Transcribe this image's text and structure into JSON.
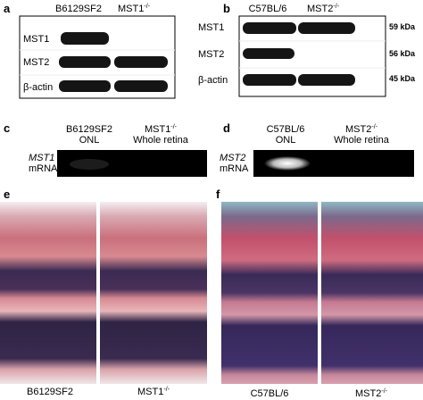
{
  "panels": {
    "a": {
      "label": "a",
      "lanes": [
        {
          "name": "B6129SF2"
        },
        {
          "name": "MST1",
          "sup": "-/-"
        }
      ],
      "rows": [
        "MST1",
        "MST2",
        "β-actin"
      ]
    },
    "b": {
      "label": "b",
      "lanes": [
        {
          "name": "C57BL/6"
        },
        {
          "name": "MST2",
          "sup": "-/-"
        }
      ],
      "rows": [
        "MST1",
        "MST2",
        "β-actin"
      ],
      "sizes": [
        "59 kDa",
        "56 kDa",
        "45 kDa"
      ]
    },
    "c": {
      "label": "c",
      "lanes": [
        {
          "name": "B6129SF2",
          "sub": "ONL"
        },
        {
          "name": "MST1",
          "sup": "-/-",
          "sub": "Whole retina"
        }
      ],
      "gene": "MST1",
      "molecule": "mRNA"
    },
    "d": {
      "label": "d",
      "lanes": [
        {
          "name": "C57BL/6",
          "sub": "ONL"
        },
        {
          "name": "MST2",
          "sup": "-/-",
          "sub": "Whole retina"
        }
      ],
      "gene": "MST2",
      "molecule": "mRNA"
    },
    "e": {
      "label": "e",
      "captions": [
        {
          "name": "B6129SF2"
        },
        {
          "name": "MST1",
          "sup": "-/-"
        }
      ]
    },
    "f": {
      "label": "f",
      "captions": [
        {
          "name": "C57BL/6"
        },
        {
          "name": "MST2",
          "sup": "-/-"
        }
      ]
    }
  }
}
